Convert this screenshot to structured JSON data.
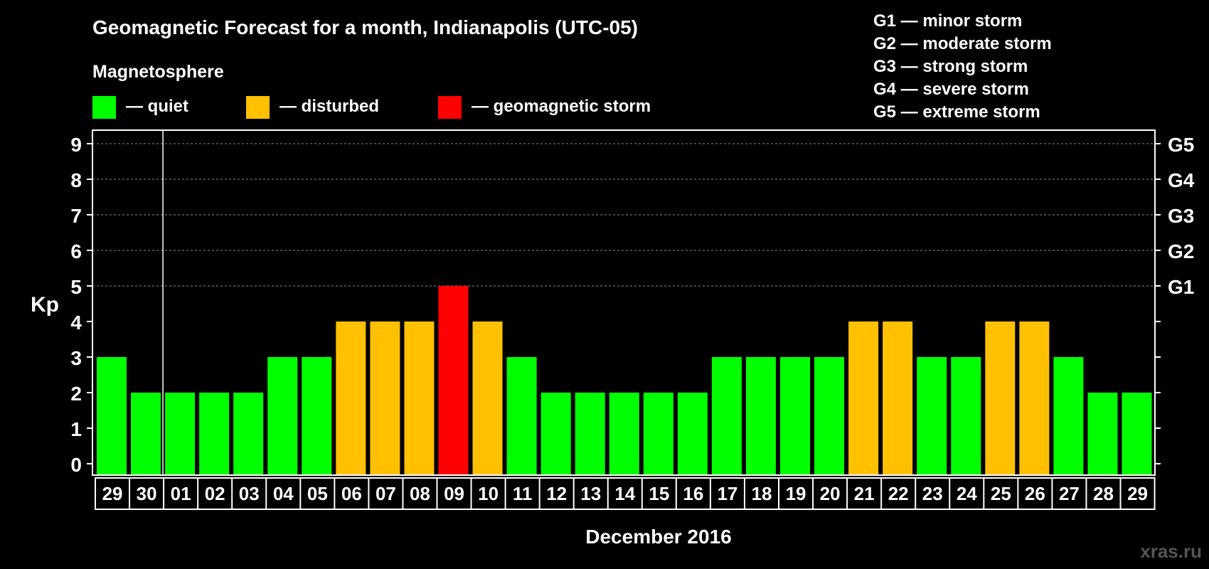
{
  "chart_data": {
    "type": "bar",
    "title": "Geomagnetic Forecast for a month, Indianapolis (UTC-05)",
    "legend": {
      "heading": "Magnetosphere",
      "items": [
        {
          "label": "— quiet",
          "color": "#00ff00"
        },
        {
          "label": "— disturbed",
          "color": "#ffc000"
        },
        {
          "label": "— geomagnetic storm",
          "color": "#ff0000"
        }
      ]
    },
    "storm_scale": [
      "G1 — minor storm",
      "G2 — moderate storm",
      "G3 — strong storm",
      "G4 — severe storm",
      "G5 — extreme storm"
    ],
    "ylabel": "Kp",
    "xlabel": "December 2016",
    "ylim": [
      0,
      9
    ],
    "yticks": [
      0,
      1,
      2,
      3,
      4,
      5,
      6,
      7,
      8,
      9
    ],
    "right_axis_labels": [
      {
        "kp": 5,
        "label": "G1"
      },
      {
        "kp": 6,
        "label": "G2"
      },
      {
        "kp": 7,
        "label": "G3"
      },
      {
        "kp": 8,
        "label": "G4"
      },
      {
        "kp": 9,
        "label": "G5"
      }
    ],
    "month_start_index": 2,
    "categories": [
      "29",
      "30",
      "01",
      "02",
      "03",
      "04",
      "05",
      "06",
      "07",
      "08",
      "09",
      "10",
      "11",
      "12",
      "13",
      "14",
      "15",
      "16",
      "17",
      "18",
      "19",
      "20",
      "21",
      "22",
      "23",
      "24",
      "25",
      "26",
      "27",
      "28",
      "29"
    ],
    "values": [
      3,
      2,
      2,
      2,
      2,
      3,
      3,
      4,
      4,
      4,
      5,
      4,
      3,
      2,
      2,
      2,
      2,
      2,
      3,
      3,
      3,
      3,
      4,
      4,
      3,
      3,
      4,
      4,
      3,
      2,
      2
    ],
    "levels": [
      "quiet",
      "quiet",
      "quiet",
      "quiet",
      "quiet",
      "quiet",
      "quiet",
      "disturbed",
      "disturbed",
      "disturbed",
      "storm",
      "disturbed",
      "quiet",
      "quiet",
      "quiet",
      "quiet",
      "quiet",
      "quiet",
      "quiet",
      "quiet",
      "quiet",
      "quiet",
      "disturbed",
      "disturbed",
      "quiet",
      "quiet",
      "disturbed",
      "disturbed",
      "quiet",
      "quiet",
      "quiet"
    ],
    "level_colors": {
      "quiet": "#00ff00",
      "disturbed": "#ffc000",
      "storm": "#ff0000"
    }
  },
  "watermark": "xras.ru"
}
